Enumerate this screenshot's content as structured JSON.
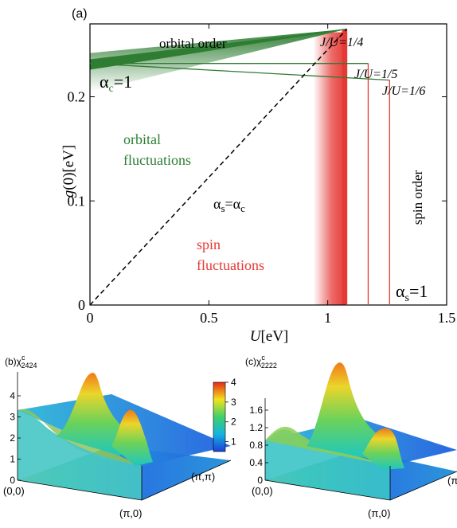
{
  "chart_data": [
    {
      "type": "line",
      "panel_label": "(a)",
      "xlabel": "U[eV]",
      "ylabel": "g(0)[eV]",
      "xlim": [
        0,
        1.5
      ],
      "ylim": [
        0,
        0.27
      ],
      "x_ticks": [
        "0",
        "0.5",
        "1",
        "1.5"
      ],
      "y_ticks": [
        "0",
        "0.1",
        "0.2"
      ],
      "grid": false,
      "series": [
        {
          "name": "J/U=1/4",
          "points": [
            [
              0,
              0.232
            ],
            [
              1.08,
              0.265
            ],
            [
              1.08,
              0
            ]
          ],
          "color": "#2e7d32"
        },
        {
          "name": "J/U=1/5",
          "points": [
            [
              0,
              0.232
            ],
            [
              1.17,
              0.232
            ],
            [
              1.17,
              0
            ]
          ],
          "color": "#2e7d32"
        },
        {
          "name": "J/U=1/6",
          "points": [
            [
              0,
              0.232
            ],
            [
              1.26,
              0.216
            ],
            [
              1.26,
              0
            ]
          ],
          "color": "#2e7d32"
        },
        {
          "name": "α_s=α_c",
          "points": [
            [
              0,
              0
            ],
            [
              1.08,
              0.265
            ]
          ],
          "style": "dashed",
          "color": "#000000"
        }
      ],
      "annotations": {
        "orbital_order": "orbital order",
        "alpha_c": "α",
        "alpha_c_sub": "c",
        "alpha_c_eq": "=1",
        "orbital_fluct_1": "orbital",
        "orbital_fluct_2": "fluctuations",
        "alpha_s_c": "α",
        "alpha_s_c_sub1": "s",
        "alpha_s_c_mid": "=α",
        "alpha_s_c_sub2": "c",
        "spin_fluct_1": "spin",
        "spin_fluct_2": "fluctuations",
        "spin_order": "spin order",
        "alpha_s": "α",
        "alpha_s_sub": "s",
        "alpha_s_eq": "=1",
        "ju_14": "J/U=1/4",
        "ju_15": "J/U=1/5",
        "ju_16": "J/U=1/6"
      },
      "colors": {
        "orbital": "#2e7d32",
        "spin": "#e53935"
      }
    },
    {
      "type": "surface",
      "panel_label": "(b)",
      "quantity": "χ",
      "quantity_sup": "c",
      "quantity_sub": "2424",
      "z_ticks": [
        "0",
        "1",
        "2",
        "3",
        "4"
      ],
      "corner_labels": [
        "(0,0)",
        "(π,0)",
        "(π,π)"
      ],
      "colorbar_ticks": [
        "1",
        "2",
        "3",
        "4"
      ]
    },
    {
      "type": "surface",
      "panel_label": "(c)",
      "quantity": "χ",
      "quantity_sup": "c",
      "quantity_sub": "2222",
      "z_ticks": [
        "0",
        "0.4",
        "0.8",
        "1.2",
        "1.6"
      ],
      "corner_labels": [
        "(0,0)",
        "(π,0)",
        "(π"
      ]
    }
  ]
}
